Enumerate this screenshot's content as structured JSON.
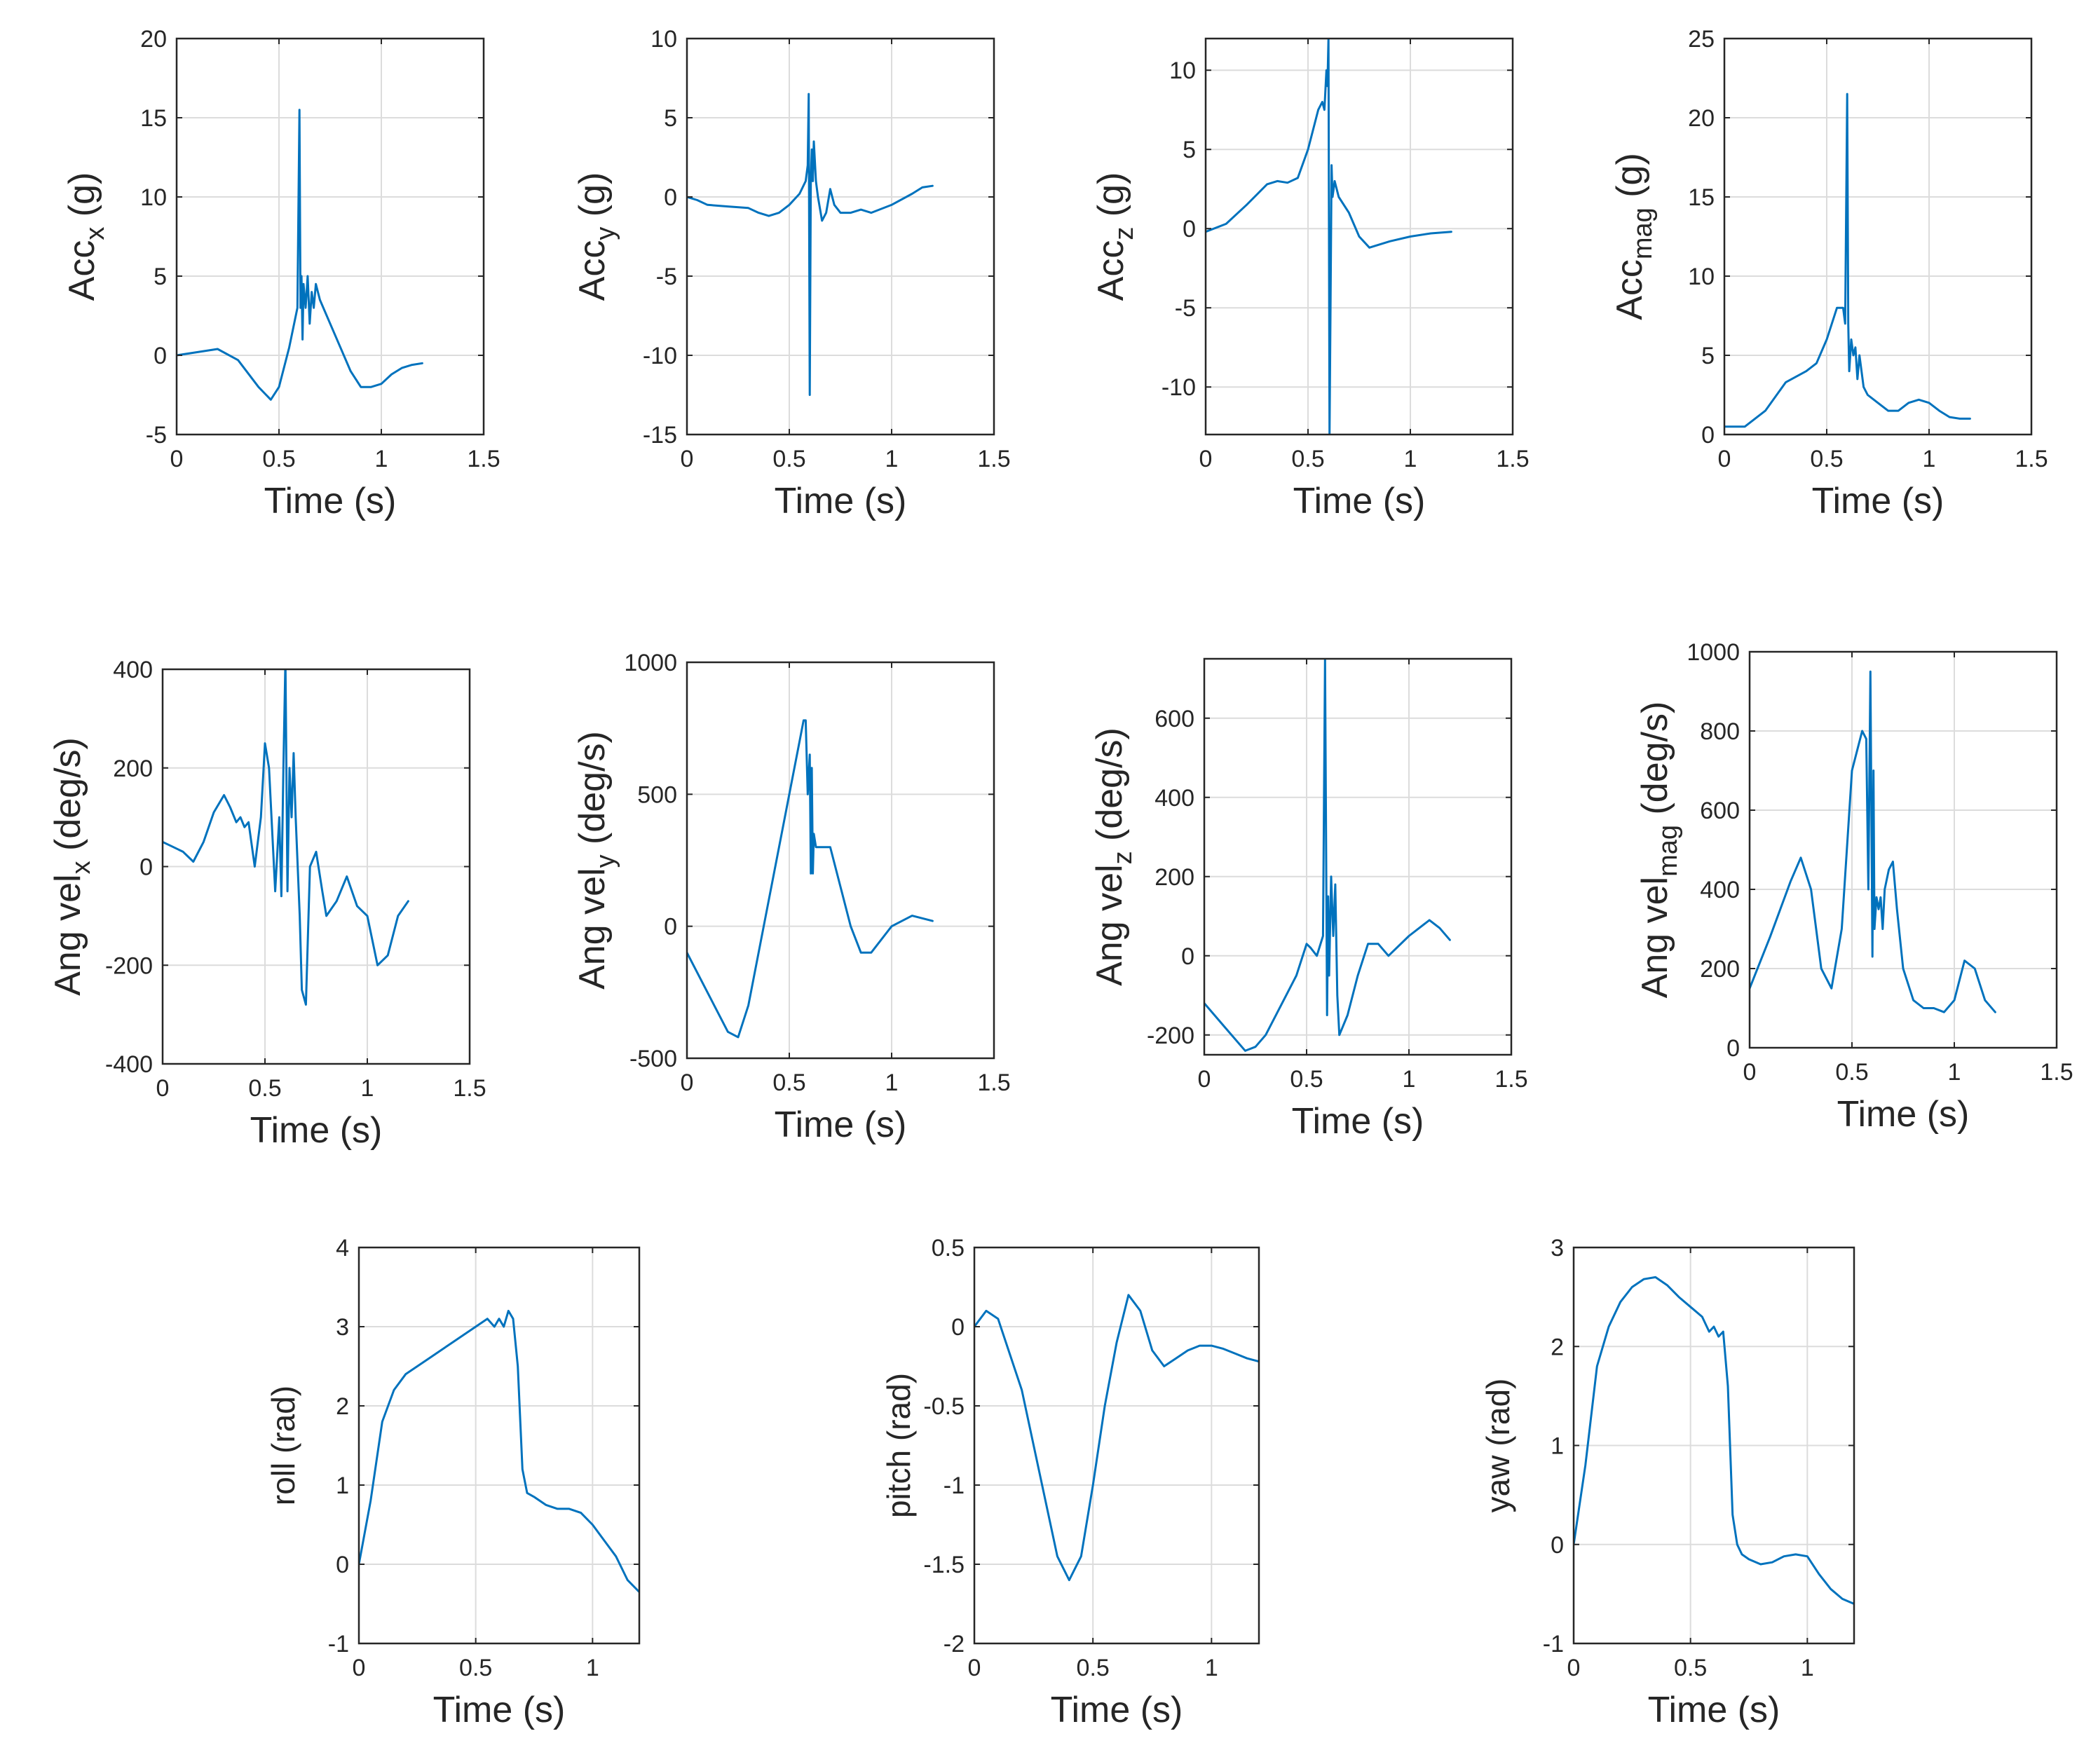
{
  "figure": {
    "line_color": "#0072BD",
    "xlabel": "Time (s)"
  },
  "chart_data": [
    {
      "id": "acc_x",
      "type": "line",
      "ylabel": {
        "base": "Acc",
        "sub": "x",
        "suffix": " (g)"
      },
      "xlim": [
        0,
        1.5
      ],
      "ylim": [
        -5,
        20
      ],
      "xticks": [
        0,
        0.5,
        1,
        1.5
      ],
      "xtick_labels": [
        "0",
        "0.5",
        "1",
        "1.5"
      ],
      "yticks": [
        -5,
        0,
        5,
        10,
        15,
        20
      ],
      "ytick_labels": [
        "-5",
        "0",
        "5",
        "10",
        "15",
        "20"
      ],
      "x": [
        0,
        0.1,
        0.2,
        0.3,
        0.4,
        0.46,
        0.5,
        0.55,
        0.59,
        0.6,
        0.605,
        0.61,
        0.615,
        0.62,
        0.63,
        0.64,
        0.65,
        0.66,
        0.67,
        0.68,
        0.7,
        0.75,
        0.8,
        0.85,
        0.9,
        0.95,
        1.0,
        1.05,
        1.1,
        1.15,
        1.2
      ],
      "y": [
        0,
        0.2,
        0.4,
        -0.3,
        -2,
        -2.8,
        -2,
        0.5,
        3,
        15.5,
        3,
        5,
        1,
        4.5,
        3,
        5,
        2,
        4,
        3,
        4.5,
        3.5,
        2,
        0.5,
        -1,
        -2,
        -2,
        -1.8,
        -1.2,
        -0.8,
        -0.6,
        -0.5
      ]
    },
    {
      "id": "acc_y",
      "type": "line",
      "ylabel": {
        "base": "Acc",
        "sub": "y",
        "suffix": " (g)"
      },
      "xlim": [
        0,
        1.5
      ],
      "ylim": [
        -15,
        10
      ],
      "xticks": [
        0,
        0.5,
        1,
        1.5
      ],
      "xtick_labels": [
        "0",
        "0.5",
        "1",
        "1.5"
      ],
      "yticks": [
        -15,
        -10,
        -5,
        0,
        5,
        10
      ],
      "ytick_labels": [
        "-15",
        "-10",
        "-5",
        "0",
        "5",
        "10"
      ],
      "x": [
        0,
        0.05,
        0.1,
        0.2,
        0.3,
        0.35,
        0.4,
        0.45,
        0.5,
        0.55,
        0.58,
        0.59,
        0.595,
        0.6,
        0.602,
        0.605,
        0.61,
        0.615,
        0.62,
        0.63,
        0.64,
        0.66,
        0.68,
        0.7,
        0.72,
        0.75,
        0.8,
        0.85,
        0.9,
        1.0,
        1.1,
        1.15,
        1.2
      ],
      "y": [
        0,
        -0.2,
        -0.5,
        -0.6,
        -0.7,
        -1,
        -1.2,
        -1,
        -0.5,
        0.2,
        1,
        2,
        6.5,
        -12.5,
        -7,
        1,
        3,
        1,
        3.5,
        1,
        0,
        -1.5,
        -1,
        0.5,
        -0.5,
        -1,
        -1,
        -0.8,
        -1,
        -0.5,
        0.2,
        0.6,
        0.7
      ]
    },
    {
      "id": "acc_z",
      "type": "line",
      "ylabel": {
        "base": "Acc",
        "sub": "z",
        "suffix": " (g)"
      },
      "xlim": [
        0,
        1.5
      ],
      "ylim": [
        -13,
        12
      ],
      "xticks": [
        0,
        0.5,
        1,
        1.5
      ],
      "xtick_labels": [
        "0",
        "0.5",
        "1",
        "1.5"
      ],
      "yticks": [
        -10,
        -5,
        0,
        5,
        10
      ],
      "ytick_labels": [
        "-10",
        "-5",
        "0",
        "5",
        "10"
      ],
      "x": [
        0,
        0.1,
        0.2,
        0.3,
        0.35,
        0.4,
        0.45,
        0.5,
        0.55,
        0.57,
        0.58,
        0.59,
        0.595,
        0.6,
        0.605,
        0.61,
        0.615,
        0.62,
        0.63,
        0.65,
        0.7,
        0.75,
        0.8,
        0.85,
        0.9,
        1.0,
        1.1,
        1.2
      ],
      "y": [
        -0.2,
        0.3,
        1.5,
        2.8,
        3,
        2.9,
        3.2,
        5,
        7.5,
        8,
        7.5,
        10,
        9,
        12,
        -13,
        -5,
        4,
        2,
        3,
        2,
        1,
        -0.5,
        -1.2,
        -1,
        -0.8,
        -0.5,
        -0.3,
        -0.2
      ]
    },
    {
      "id": "acc_mag",
      "type": "line",
      "ylabel": {
        "base": "Acc",
        "sub": "mag",
        "suffix": " (g)"
      },
      "xlim": [
        0,
        1.5
      ],
      "ylim": [
        0,
        25
      ],
      "xticks": [
        0,
        0.5,
        1,
        1.5
      ],
      "xtick_labels": [
        "0",
        "0.5",
        "1",
        "1.5"
      ],
      "yticks": [
        0,
        5,
        10,
        15,
        20,
        25
      ],
      "ytick_labels": [
        "0",
        "5",
        "10",
        "15",
        "20",
        "25"
      ],
      "x": [
        0,
        0.1,
        0.2,
        0.3,
        0.4,
        0.45,
        0.5,
        0.55,
        0.58,
        0.59,
        0.6,
        0.605,
        0.61,
        0.62,
        0.63,
        0.64,
        0.65,
        0.66,
        0.68,
        0.7,
        0.75,
        0.8,
        0.85,
        0.9,
        0.95,
        1.0,
        1.05,
        1.1,
        1.15,
        1.2
      ],
      "y": [
        0.5,
        0.5,
        1.5,
        3.3,
        4,
        4.5,
        6,
        8,
        8,
        7,
        21.5,
        7,
        4,
        6,
        5,
        5.5,
        3.5,
        5,
        3,
        2.5,
        2,
        1.5,
        1.5,
        2,
        2.2,
        2,
        1.5,
        1.1,
        1,
        1
      ]
    },
    {
      "id": "angvel_x",
      "type": "line",
      "ylabel": {
        "base": "Ang vel",
        "sub": "x",
        "suffix": " (deg/s)"
      },
      "xlim": [
        0,
        1.5
      ],
      "ylim": [
        -400,
        400
      ],
      "xticks": [
        0,
        0.5,
        1,
        1.5
      ],
      "xtick_labels": [
        "0",
        "0.5",
        "1",
        "1.5"
      ],
      "yticks": [
        -400,
        -200,
        0,
        200,
        400
      ],
      "ytick_labels": [
        "-400",
        "-200",
        "0",
        "200",
        "400"
      ],
      "x": [
        0,
        0.05,
        0.1,
        0.15,
        0.2,
        0.25,
        0.3,
        0.33,
        0.36,
        0.38,
        0.4,
        0.42,
        0.45,
        0.48,
        0.5,
        0.52,
        0.55,
        0.57,
        0.58,
        0.59,
        0.6,
        0.61,
        0.62,
        0.63,
        0.64,
        0.65,
        0.67,
        0.68,
        0.7,
        0.72,
        0.75,
        0.78,
        0.8,
        0.85,
        0.9,
        0.95,
        1.0,
        1.05,
        1.1,
        1.15,
        1.2
      ],
      "y": [
        50,
        40,
        30,
        10,
        50,
        110,
        145,
        120,
        90,
        100,
        80,
        90,
        0,
        100,
        250,
        200,
        -50,
        100,
        -60,
        200,
        420,
        -50,
        200,
        100,
        230,
        100,
        -100,
        -250,
        -280,
        0,
        30,
        -50,
        -100,
        -70,
        -20,
        -80,
        -100,
        -200,
        -180,
        -100,
        -70
      ]
    },
    {
      "id": "angvel_y",
      "type": "line",
      "ylabel": {
        "base": "Ang vel",
        "sub": "y",
        "suffix": " (deg/s)"
      },
      "xlim": [
        0,
        1.5
      ],
      "ylim": [
        -500,
        1000
      ],
      "xticks": [
        0,
        0.5,
        1,
        1.5
      ],
      "xtick_labels": [
        "0",
        "0.5",
        "1",
        "1.5"
      ],
      "yticks": [
        -500,
        0,
        500,
        1000
      ],
      "ytick_labels": [
        "-500",
        "0",
        "500",
        "1000"
      ],
      "x": [
        0,
        0.1,
        0.2,
        0.25,
        0.3,
        0.4,
        0.5,
        0.55,
        0.57,
        0.58,
        0.59,
        0.6,
        0.605,
        0.61,
        0.615,
        0.62,
        0.63,
        0.65,
        0.7,
        0.75,
        0.8,
        0.85,
        0.9,
        1.0,
        1.1,
        1.2
      ],
      "y": [
        -100,
        -250,
        -400,
        -420,
        -300,
        100,
        500,
        700,
        780,
        780,
        500,
        650,
        200,
        600,
        200,
        350,
        300,
        300,
        300,
        150,
        0,
        -100,
        -100,
        0,
        40,
        20
      ]
    },
    {
      "id": "angvel_z",
      "type": "line",
      "ylabel": {
        "base": "Ang vel",
        "sub": "z",
        "suffix": " (deg/s)"
      },
      "xlim": [
        0,
        1.5
      ],
      "ylim": [
        -250,
        750
      ],
      "xticks": [
        0,
        0.5,
        1,
        1.5
      ],
      "xtick_labels": [
        "0",
        "0.5",
        "1",
        "1.5"
      ],
      "yticks": [
        -200,
        0,
        200,
        400,
        600
      ],
      "ytick_labels": [
        "-200",
        "0",
        "200",
        "400",
        "600"
      ],
      "x": [
        0,
        0.1,
        0.2,
        0.25,
        0.3,
        0.4,
        0.45,
        0.5,
        0.52,
        0.55,
        0.58,
        0.59,
        0.6,
        0.605,
        0.61,
        0.62,
        0.63,
        0.64,
        0.65,
        0.66,
        0.7,
        0.75,
        0.8,
        0.85,
        0.9,
        1.0,
        1.1,
        1.15,
        1.2
      ],
      "y": [
        -120,
        -180,
        -240,
        -230,
        -200,
        -100,
        -50,
        30,
        20,
        0,
        50,
        750,
        -150,
        150,
        -50,
        200,
        50,
        180,
        -100,
        -200,
        -150,
        -50,
        30,
        30,
        0,
        50,
        90,
        70,
        40
      ]
    },
    {
      "id": "angvel_mag",
      "type": "line",
      "ylabel": {
        "base": "Ang vel",
        "sub": "mag",
        "suffix": " (deg/s)"
      },
      "xlim": [
        0,
        1.5
      ],
      "ylim": [
        0,
        1000
      ],
      "xticks": [
        0,
        0.5,
        1,
        1.5
      ],
      "xtick_labels": [
        "0",
        "0.5",
        "1",
        "1.5"
      ],
      "yticks": [
        0,
        200,
        400,
        600,
        800,
        1000
      ],
      "ytick_labels": [
        "0",
        "200",
        "400",
        "600",
        "800",
        "1000"
      ],
      "x": [
        0,
        0.1,
        0.2,
        0.25,
        0.3,
        0.35,
        0.4,
        0.45,
        0.5,
        0.55,
        0.57,
        0.58,
        0.59,
        0.6,
        0.605,
        0.61,
        0.62,
        0.63,
        0.64,
        0.65,
        0.66,
        0.68,
        0.7,
        0.72,
        0.75,
        0.8,
        0.85,
        0.9,
        0.95,
        1.0,
        1.05,
        1.1,
        1.15,
        1.2
      ],
      "y": [
        150,
        280,
        420,
        480,
        400,
        200,
        150,
        300,
        700,
        800,
        780,
        400,
        950,
        230,
        700,
        300,
        380,
        350,
        380,
        300,
        400,
        450,
        470,
        350,
        200,
        120,
        100,
        100,
        90,
        120,
        220,
        200,
        120,
        90
      ]
    },
    {
      "id": "roll",
      "type": "line",
      "ylabel": {
        "base": "roll (rad)",
        "sub": "",
        "suffix": ""
      },
      "xlim": [
        0,
        1.2
      ],
      "ylim": [
        -1,
        4
      ],
      "xticks": [
        0,
        0.5,
        1
      ],
      "xtick_labels": [
        "0",
        "0.5",
        "1"
      ],
      "yticks": [
        -1,
        0,
        1,
        2,
        3,
        4
      ],
      "ytick_labels": [
        "-1",
        "0",
        "1",
        "2",
        "3",
        "4"
      ],
      "x": [
        0,
        0.05,
        0.1,
        0.15,
        0.2,
        0.3,
        0.4,
        0.5,
        0.55,
        0.58,
        0.6,
        0.62,
        0.64,
        0.66,
        0.68,
        0.7,
        0.72,
        0.75,
        0.8,
        0.85,
        0.9,
        0.95,
        1.0,
        1.05,
        1.1,
        1.15,
        1.2
      ],
      "y": [
        0,
        0.8,
        1.8,
        2.2,
        2.4,
        2.6,
        2.8,
        3,
        3.1,
        3.0,
        3.1,
        3.0,
        3.2,
        3.1,
        2.5,
        1.2,
        0.9,
        0.85,
        0.75,
        0.7,
        0.7,
        0.65,
        0.5,
        0.3,
        0.1,
        -0.2,
        -0.35
      ]
    },
    {
      "id": "pitch",
      "type": "line",
      "ylabel": {
        "base": "pitch (rad)",
        "sub": "",
        "suffix": ""
      },
      "xlim": [
        0,
        1.2
      ],
      "ylim": [
        -2,
        0.5
      ],
      "xticks": [
        0,
        0.5,
        1
      ],
      "xtick_labels": [
        "0",
        "0.5",
        "1"
      ],
      "yticks": [
        -2,
        -1.5,
        -1,
        -0.5,
        0,
        0.5
      ],
      "ytick_labels": [
        "-2",
        "-1.5",
        "-1",
        "-0.5",
        "0",
        "0.5"
      ],
      "x": [
        0,
        0.05,
        0.1,
        0.2,
        0.3,
        0.35,
        0.4,
        0.45,
        0.5,
        0.55,
        0.6,
        0.65,
        0.7,
        0.75,
        0.8,
        0.85,
        0.9,
        0.95,
        1.0,
        1.05,
        1.1,
        1.15,
        1.2
      ],
      "y": [
        0,
        0.1,
        0.05,
        -0.4,
        -1.1,
        -1.45,
        -1.6,
        -1.45,
        -1.0,
        -0.5,
        -0.1,
        0.2,
        0.1,
        -0.15,
        -0.25,
        -0.2,
        -0.15,
        -0.12,
        -0.12,
        -0.14,
        -0.17,
        -0.2,
        -0.22
      ]
    },
    {
      "id": "yaw",
      "type": "line",
      "ylabel": {
        "base": "yaw (rad)",
        "sub": "",
        "suffix": ""
      },
      "xlim": [
        0,
        1.2
      ],
      "ylim": [
        -1,
        3
      ],
      "xticks": [
        0,
        0.5,
        1
      ],
      "xtick_labels": [
        "0",
        "0.5",
        "1"
      ],
      "yticks": [
        -1,
        0,
        1,
        2,
        3
      ],
      "ytick_labels": [
        "-1",
        "0",
        "1",
        "2",
        "3"
      ],
      "x": [
        0,
        0.05,
        0.1,
        0.15,
        0.2,
        0.25,
        0.3,
        0.35,
        0.4,
        0.45,
        0.5,
        0.55,
        0.58,
        0.6,
        0.62,
        0.64,
        0.66,
        0.68,
        0.7,
        0.72,
        0.75,
        0.8,
        0.85,
        0.9,
        0.95,
        1.0,
        1.05,
        1.1,
        1.15,
        1.2
      ],
      "y": [
        0,
        0.8,
        1.8,
        2.2,
        2.45,
        2.6,
        2.68,
        2.7,
        2.62,
        2.5,
        2.4,
        2.3,
        2.15,
        2.2,
        2.1,
        2.15,
        1.6,
        0.3,
        0,
        -0.1,
        -0.15,
        -0.2,
        -0.18,
        -0.12,
        -0.1,
        -0.12,
        -0.3,
        -0.45,
        -0.55,
        -0.6
      ]
    }
  ]
}
